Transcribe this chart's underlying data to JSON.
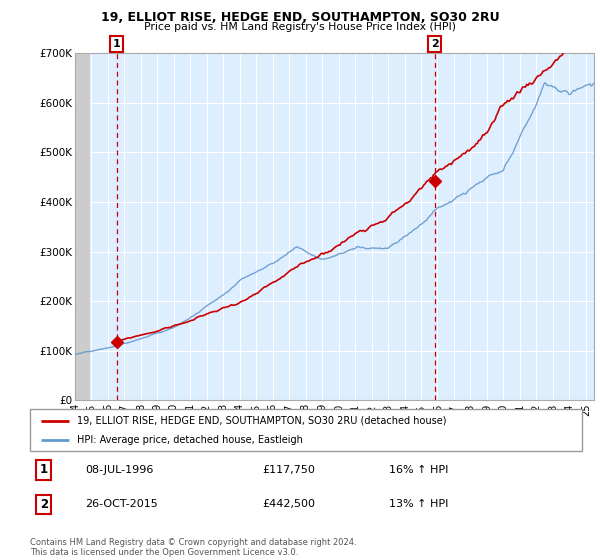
{
  "title1": "19, ELLIOT RISE, HEDGE END, SOUTHAMPTON, SO30 2RU",
  "title2": "Price paid vs. HM Land Registry's House Price Index (HPI)",
  "legend_line1": "19, ELLIOT RISE, HEDGE END, SOUTHAMPTON, SO30 2RU (detached house)",
  "legend_line2": "HPI: Average price, detached house, Eastleigh",
  "annotation1_date": "08-JUL-1996",
  "annotation1_price": "£117,750",
  "annotation1_hpi": "16% ↑ HPI",
  "annotation2_date": "26-OCT-2015",
  "annotation2_price": "£442,500",
  "annotation2_hpi": "13% ↑ HPI",
  "footer": "Contains HM Land Registry data © Crown copyright and database right 2024.\nThis data is licensed under the Open Government Licence v3.0.",
  "sale1_year": 1996.52,
  "sale1_price": 117750,
  "sale2_year": 2015.82,
  "sale2_price": 442500,
  "price_color": "#cc0000",
  "hpi_color": "#6699cc",
  "plot_bg_color": "#ddeeff",
  "hatch_color": "#bbbbbb",
  "ylim": [
    0,
    700000
  ],
  "xlim_start": 1994.0,
  "xlim_end": 2025.5,
  "hatch_end": 1994.92
}
